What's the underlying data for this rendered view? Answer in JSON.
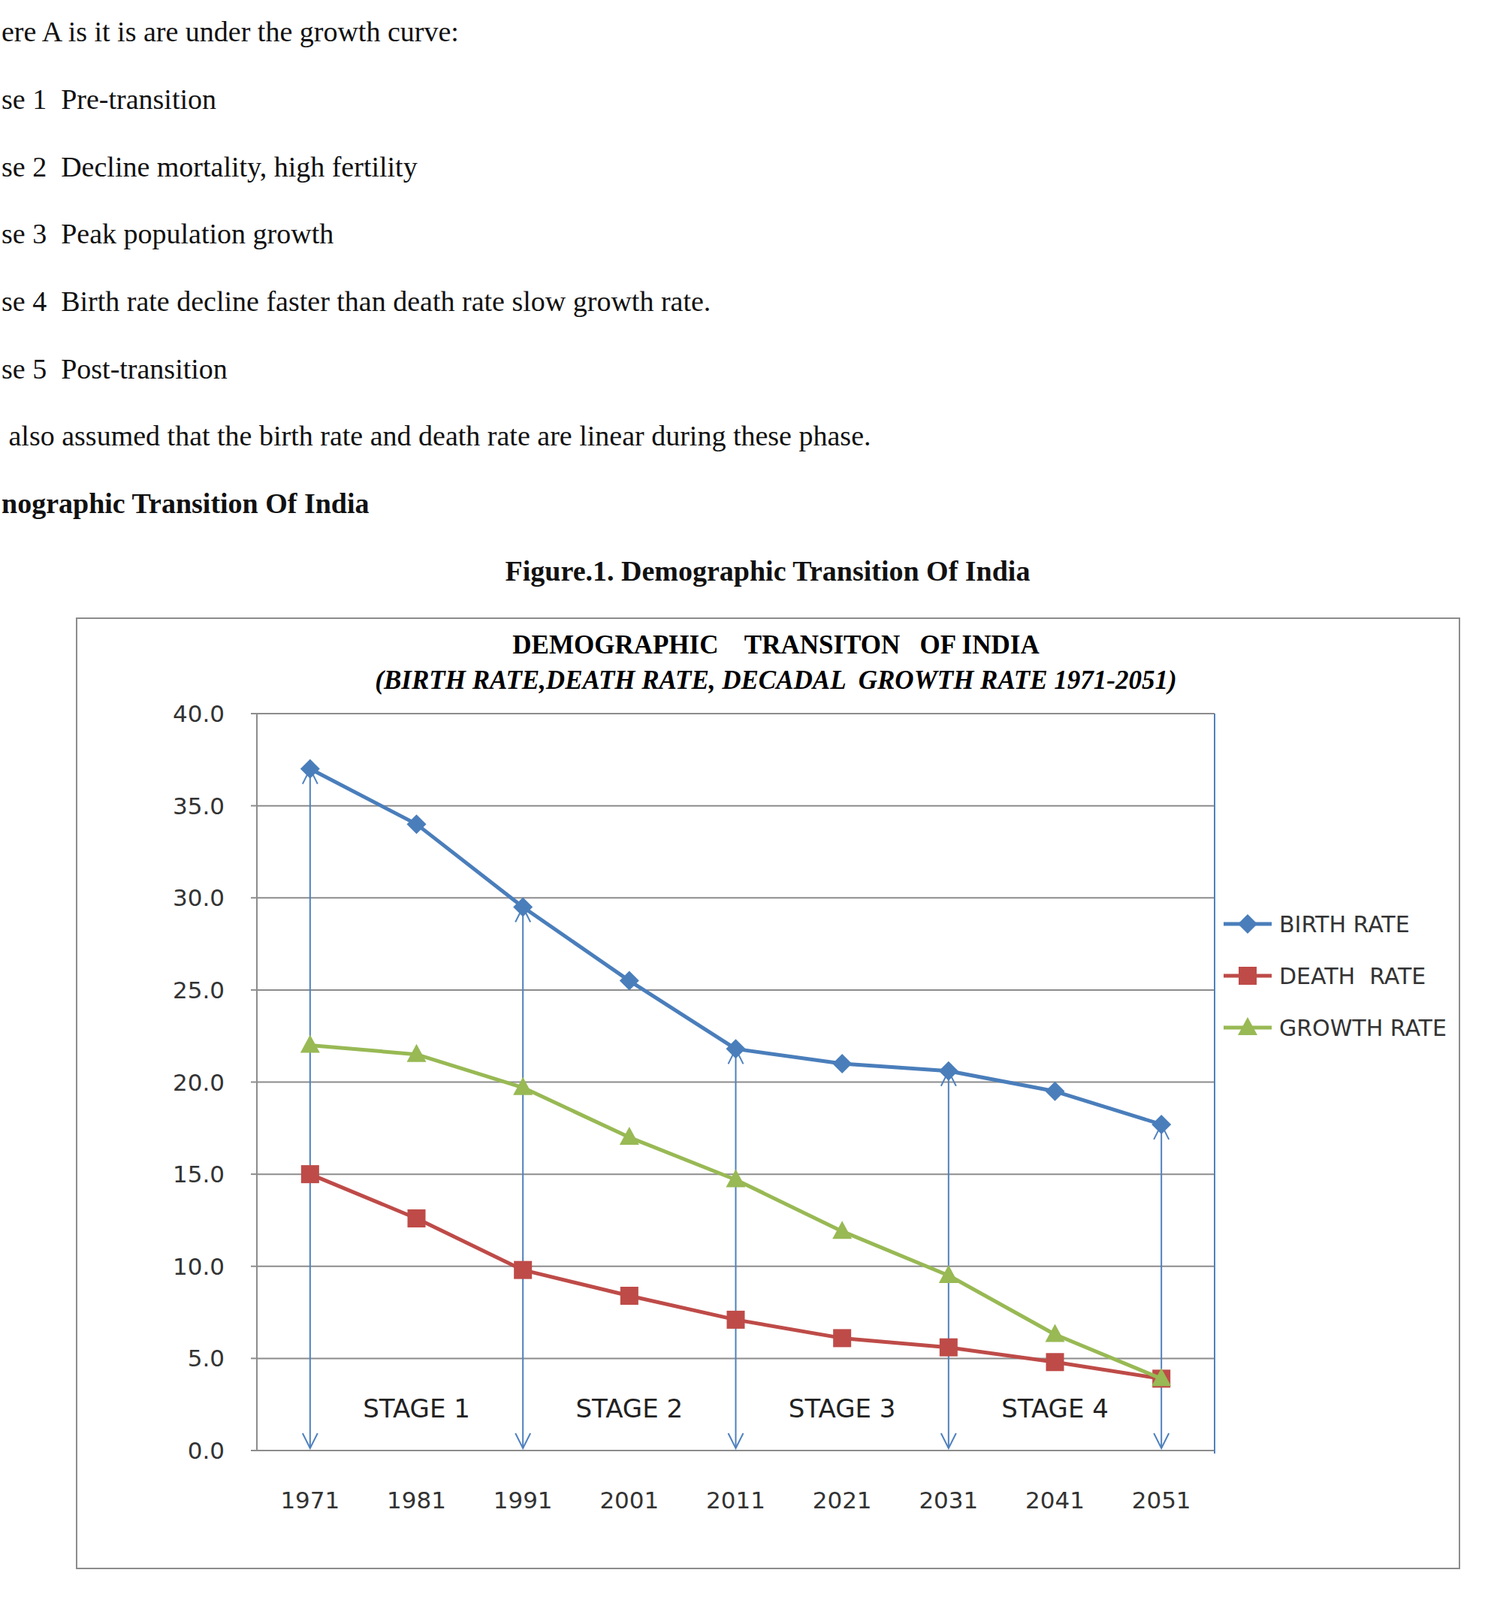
{
  "document": {
    "lines": [
      "ere A is it is are under the growth curve:",
      "se 1  Pre-transition",
      "se 2  Decline mortality, high fertility",
      "se 3  Peak population growth",
      "se 4  Birth rate decline faster than death rate slow growth rate.",
      "se 5  Post-transition",
      " also assumed that the birth rate and death rate are linear during these phase."
    ],
    "heading": "nographic Transition Of India",
    "caption": "Figure.1. Demographic Transition Of India"
  },
  "chart_data": {
    "type": "line",
    "title": "DEMOGRAPHIC    TRANSITON   OF INDIA",
    "subtitle": "(BIRTH RATE,DEATH RATE, DECADAL  GROWTH RATE 1971-2051)",
    "categories": [
      "1971",
      "1981",
      "1991",
      "2001",
      "2011",
      "2021",
      "2031",
      "2041",
      "2051"
    ],
    "series": [
      {
        "name": "BIRTH RATE",
        "color": "#4a7ebb",
        "marker": "diamond",
        "values": [
          37.0,
          34.0,
          29.5,
          25.5,
          21.8,
          21.0,
          20.6,
          19.5,
          17.7
        ]
      },
      {
        "name": "DEATH  RATE",
        "color": "#be4b48",
        "marker": "square",
        "values": [
          15.0,
          12.6,
          9.8,
          8.4,
          7.1,
          6.1,
          5.6,
          4.8,
          3.9
        ]
      },
      {
        "name": "GROWTH RATE",
        "color": "#98b954",
        "marker": "triangle",
        "values": [
          22.0,
          21.5,
          19.7,
          17.0,
          14.7,
          11.9,
          9.5,
          6.3,
          3.9
        ]
      }
    ],
    "annotations": [
      "STAGE 1",
      "STAGE 2",
      "STAGE 3",
      "STAGE 4"
    ],
    "ylim": [
      0,
      40
    ],
    "yticks": [
      {
        "value": 0,
        "label": "0.0"
      },
      {
        "value": 5,
        "label": "5.0"
      },
      {
        "value": 10,
        "label": "10.0"
      },
      {
        "value": 15,
        "label": "15.0"
      },
      {
        "value": 20,
        "label": "20.0"
      },
      {
        "value": 25,
        "label": "25.0"
      },
      {
        "value": 30,
        "label": "30.0"
      },
      {
        "value": 35,
        "label": "35.0"
      },
      {
        "value": 40,
        "label": "40.0"
      }
    ],
    "grid": true,
    "legend": "right"
  }
}
